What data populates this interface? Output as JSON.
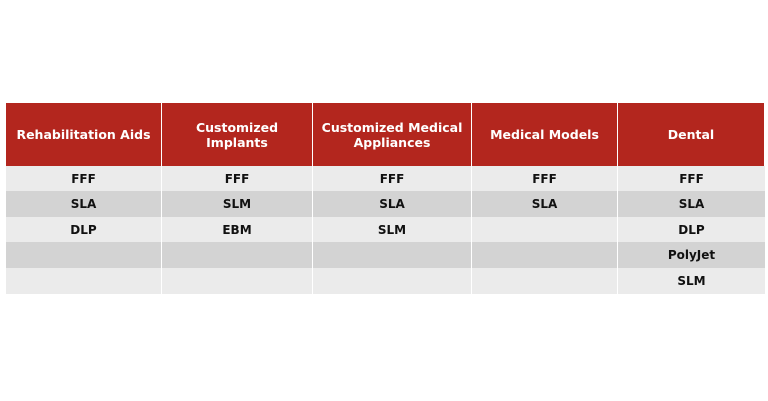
{
  "table": {
    "headers": [
      "Rehabilitation Aids",
      "Customized Implants",
      "Customized Medical Appliances",
      "Medical Models",
      "Dental"
    ],
    "rows": [
      [
        "FFF",
        "FFF",
        "FFF",
        "FFF",
        "FFF"
      ],
      [
        "SLA",
        "SLM",
        "SLA",
        "SLA",
        "SLA"
      ],
      [
        "DLP",
        "EBM",
        "SLM",
        "",
        "DLP"
      ],
      [
        "",
        "",
        "",
        "",
        "PolyJet"
      ],
      [
        "",
        "",
        "",
        "",
        "SLM"
      ]
    ]
  }
}
